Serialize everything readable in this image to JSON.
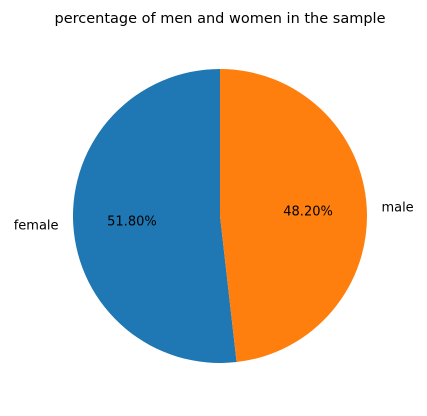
{
  "chart_data": {
    "type": "pie",
    "title": "percentage of men and women in the sample",
    "slices": [
      {
        "label": "female",
        "value": 51.8,
        "percent_label": "51.80%",
        "color": "#1f77b4"
      },
      {
        "label": "male",
        "value": 48.2,
        "percent_label": "48.20%",
        "color": "#ff7f0e"
      }
    ],
    "start_angle_deg": 90,
    "direction": "counterclockwise",
    "legend": "none"
  }
}
